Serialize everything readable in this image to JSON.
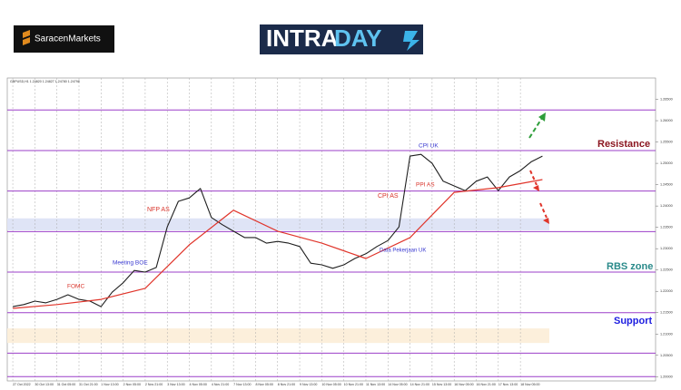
{
  "logos": {
    "broker": "SaracenMarkets",
    "product_parts": [
      "INTRA",
      "DAY"
    ]
  },
  "chart_data": {
    "type": "line",
    "title": "GBPUSD,H1 1.24820 1.24827 1.24780 1.24798",
    "xlim": [
      -4,
      466
    ],
    "ylim": [
      1.199,
      1.27
    ],
    "xticks": [
      {
        "value": 0,
        "label": "27 Oct 2022"
      },
      {
        "value": 16,
        "label": "30 Oct 13:00"
      },
      {
        "value": 32,
        "label": "31 Oct 05:00"
      },
      {
        "value": 48,
        "label": "31 Oct 21:00"
      },
      {
        "value": 64,
        "label": "1 Nov 13:00"
      },
      {
        "value": 80,
        "label": "2 Nov 05:00"
      },
      {
        "value": 96,
        "label": "2 Nov 21:00"
      },
      {
        "value": 112,
        "label": "3 Nov 13:00"
      },
      {
        "value": 128,
        "label": "4 Nov 05:00"
      },
      {
        "value": 144,
        "label": "4 Nov 21:00"
      },
      {
        "value": 160,
        "label": "7 Nov 13:00"
      },
      {
        "value": 176,
        "label": "8 Nov 05:00"
      },
      {
        "value": 192,
        "label": "8 Nov 21:00"
      },
      {
        "value": 208,
        "label": "9 Nov 13:00"
      },
      {
        "value": 224,
        "label": "10 Nov 05:00"
      },
      {
        "value": 240,
        "label": "10 Nov 21:00"
      },
      {
        "value": 256,
        "label": "11 Nov 13:00"
      },
      {
        "value": 272,
        "label": "14 Nov 05:00"
      },
      {
        "value": 288,
        "label": "14 Nov 21:00"
      },
      {
        "value": 304,
        "label": "15 Nov 13:00"
      },
      {
        "value": 320,
        "label": "16 Nov 05:00"
      },
      {
        "value": 336,
        "label": "16 Nov 21:00"
      },
      {
        "value": 352,
        "label": "17 Nov 13:00"
      },
      {
        "value": 368,
        "label": "18 Nov 05:00"
      }
    ],
    "yticks": [
      {
        "value": 1.2,
        "label": "1.20000"
      },
      {
        "value": 1.205,
        "label": "1.20500"
      },
      {
        "value": 1.21,
        "label": "1.21000"
      },
      {
        "value": 1.215,
        "label": "1.21500"
      },
      {
        "value": 1.22,
        "label": "1.22000"
      },
      {
        "value": 1.225,
        "label": "1.22500"
      },
      {
        "value": 1.23,
        "label": "1.23000"
      },
      {
        "value": 1.235,
        "label": "1.23500"
      },
      {
        "value": 1.24,
        "label": "1.24000"
      },
      {
        "value": 1.245,
        "label": "1.24500"
      },
      {
        "value": 1.25,
        "label": "1.25000"
      },
      {
        "value": 1.255,
        "label": "1.25500"
      },
      {
        "value": 1.26,
        "label": "1.26000"
      },
      {
        "value": 1.265,
        "label": "1.26500"
      }
    ],
    "grid": true,
    "series": [
      {
        "color": "#1f1f1f",
        "x": [
          0,
          8,
          16,
          24,
          32,
          40,
          48,
          56,
          64,
          72,
          80,
          88,
          96,
          104,
          112,
          120,
          128,
          136,
          144,
          152,
          160,
          168,
          176,
          184,
          192,
          200,
          208,
          216,
          224,
          232,
          240,
          248,
          256,
          264,
          272,
          280,
          288,
          296,
          304,
          312,
          320,
          328,
          336,
          344,
          352,
          360,
          368,
          376,
          384
        ],
        "values": [
          1.2164,
          1.2169,
          1.2177,
          1.2173,
          1.2181,
          1.2192,
          1.2181,
          1.2177,
          1.2164,
          1.2198,
          1.222,
          1.2249,
          1.2245,
          1.2256,
          1.2351,
          1.2411,
          1.2419,
          1.2441,
          1.2373,
          1.2356,
          1.2341,
          1.2326,
          1.2326,
          1.2313,
          1.2317,
          1.2313,
          1.2305,
          1.2266,
          1.2262,
          1.2254,
          1.2262,
          1.2277,
          1.2288,
          1.2305,
          1.2319,
          1.2351,
          1.2517,
          1.2521,
          1.25,
          1.2458,
          1.2447,
          1.2436,
          1.2458,
          1.2468,
          1.2436,
          1.2468,
          1.2483,
          1.2504,
          1.2517
        ]
      },
      {
        "color": "#e0352b",
        "x": [
          0,
          32,
          64,
          96,
          128,
          160,
          192,
          224,
          256,
          288,
          320,
          352,
          384
        ],
        "values": [
          1.216,
          1.2169,
          1.2181,
          1.2207,
          1.2309,
          1.239,
          1.2341,
          1.2313,
          1.2277,
          1.2326,
          1.2432,
          1.2443,
          1.2462
        ]
      }
    ],
    "levels": {
      "color": "#9b3fc8",
      "values": [
        1.2625,
        1.253,
        1.2435,
        1.234,
        1.2245,
        1.215,
        1.2055,
        1.2
      ]
    },
    "zones": [
      {
        "color": "#dfe4f6",
        "range": [
          1.2343,
          1.2371
        ]
      },
      {
        "color": "#fcefdb",
        "range": [
          1.2079,
          1.2113
        ]
      }
    ],
    "annotations": [
      {
        "text": "FOMC",
        "color": "#d9332a"
      },
      {
        "text": "Meeting BOE",
        "color": "#3a3ad0"
      },
      {
        "text": "NFP AS",
        "color": "#d9332a"
      },
      {
        "text": "CPI AS",
        "color": "#d9332a"
      },
      {
        "text": "CPI UK",
        "color": "#3a3ad0"
      },
      {
        "text": "PPI AS",
        "color": "#d9332a"
      },
      {
        "text": "Data Pekerjaan UK",
        "color": "#3a3ad0"
      },
      {
        "text": "Resistance",
        "color": "#8b1520"
      },
      {
        "text": "RBS zone",
        "color": "#2a8a8a"
      },
      {
        "text": "Support",
        "color": "#1d1de0"
      }
    ]
  }
}
